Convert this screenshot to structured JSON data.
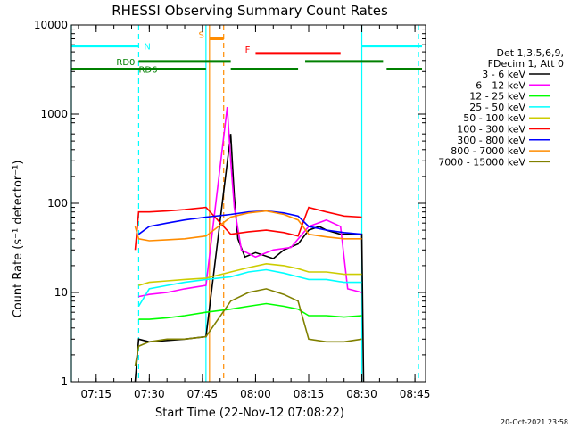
{
  "chart_data": {
    "type": "line",
    "title": "RHESSI Observing Summary Count Rates",
    "xlabel": "Start Time (22-Nov-12 07:08:22)",
    "ylabel": "Count Rate (s⁻¹ detector⁻¹)",
    "yscale": "log",
    "ylim": [
      1,
      10000
    ],
    "xlim": [
      "07:08",
      "08:48"
    ],
    "x_ticks": [
      "07:15",
      "07:30",
      "07:45",
      "08:00",
      "08:15",
      "08:30",
      "08:45"
    ],
    "y_ticks": [
      "1",
      "10",
      "100",
      "1000",
      "10000"
    ],
    "footer_date": "20-Oct-2021 23:58",
    "legend": {
      "header": [
        "Det 1,3,5,6,9,",
        "FDecim 1, Att 0"
      ],
      "entries": [
        {
          "label": "3 - 6 keV",
          "color": "#000000"
        },
        {
          "label": "6 - 12 keV",
          "color": "#ff00ff"
        },
        {
          "label": "12 - 25 keV",
          "color": "#00ff00"
        },
        {
          "label": "25 - 50 keV",
          "color": "#00ffff"
        },
        {
          "label": "50 - 100 keV",
          "color": "#cccc00"
        },
        {
          "label": "100 - 300 keV",
          "color": "#ff0000"
        },
        {
          "label": "300 - 800 keV",
          "color": "#0000ff"
        },
        {
          "label": "800 - 7000 keV",
          "color": "#ff8c00"
        },
        {
          "label": "7000 - 15000 keV",
          "color": "#808000"
        }
      ]
    },
    "flags": [
      {
        "label": "N",
        "color": "#00ffff",
        "level": 5800,
        "segments": [
          [
            "07:08",
            "07:27"
          ],
          [
            "08:30",
            "08:47"
          ]
        ]
      },
      {
        "label": "S",
        "color": "#ff8c00",
        "level": 7000,
        "segments": [
          [
            "07:47",
            "07:51"
          ]
        ]
      },
      {
        "label": "F",
        "color": "#ff0000",
        "level": 4800,
        "segments": [
          [
            "08:00",
            "08:24"
          ]
        ]
      },
      {
        "label": "RD0",
        "color": "#008000",
        "level": 3900,
        "segments": [
          [
            "07:27",
            "07:53"
          ],
          [
            "08:14",
            "08:36"
          ]
        ]
      },
      {
        "label": "RD6",
        "color": "#008000",
        "level": 3200,
        "segments": [
          [
            "07:08",
            "07:46"
          ],
          [
            "07:53",
            "08:12"
          ],
          [
            "08:37",
            "08:47"
          ]
        ]
      }
    ],
    "vlines": [
      {
        "t": "07:08",
        "color": "#00ffff",
        "style": "solid"
      },
      {
        "t": "07:27",
        "color": "#00ffff",
        "style": "dashed"
      },
      {
        "t": "07:46",
        "color": "#00ffff",
        "style": "solid"
      },
      {
        "t": "07:47",
        "color": "#ff8c00",
        "style": "solid"
      },
      {
        "t": "07:51",
        "color": "#ff8c00",
        "style": "dashed"
      },
      {
        "t": "08:30",
        "color": "#00ffff",
        "style": "solid"
      },
      {
        "t": "08:46",
        "color": "#00ffff",
        "style": "dashed"
      }
    ],
    "series": [
      {
        "name": "3 - 6 keV",
        "color": "#000000",
        "points": [
          [
            "07:26",
            1.0
          ],
          [
            "07:27",
            3.0
          ],
          [
            "07:30",
            2.8
          ],
          [
            "07:35",
            2.9
          ],
          [
            "07:40",
            3.0
          ],
          [
            "07:46",
            3.2
          ],
          [
            "07:53",
            600
          ],
          [
            "07:54",
            120
          ],
          [
            "07:55",
            40
          ],
          [
            "07:57",
            25
          ],
          [
            "08:00",
            28
          ],
          [
            "08:05",
            24
          ],
          [
            "08:08",
            30
          ],
          [
            "08:12",
            35
          ],
          [
            "08:15",
            50
          ],
          [
            "08:18",
            55
          ],
          [
            "08:20",
            50
          ],
          [
            "08:24",
            45
          ],
          [
            "08:27",
            45
          ],
          [
            "08:30",
            45
          ],
          [
            "08:30.5",
            1.0
          ]
        ]
      },
      {
        "name": "6 - 12 keV",
        "color": "#ff00ff",
        "points": [
          [
            "07:27",
            9
          ],
          [
            "07:30",
            9.5
          ],
          [
            "07:35",
            10
          ],
          [
            "07:40",
            11
          ],
          [
            "07:46",
            12
          ],
          [
            "07:52",
            1200
          ],
          [
            "07:53",
            300
          ],
          [
            "07:54",
            90
          ],
          [
            "07:56",
            30
          ],
          [
            "08:00",
            25
          ],
          [
            "08:05",
            30
          ],
          [
            "08:10",
            32
          ],
          [
            "08:15",
            55
          ],
          [
            "08:20",
            65
          ],
          [
            "08:24",
            55
          ],
          [
            "08:26",
            11
          ],
          [
            "08:30",
            10
          ]
        ]
      },
      {
        "name": "12 - 25 keV",
        "color": "#00ff00",
        "points": [
          [
            "07:27",
            5
          ],
          [
            "07:30",
            5
          ],
          [
            "07:35",
            5.2
          ],
          [
            "07:40",
            5.5
          ],
          [
            "07:46",
            6
          ],
          [
            "07:53",
            6.5
          ],
          [
            "07:58",
            7
          ],
          [
            "08:03",
            7.5
          ],
          [
            "08:08",
            7
          ],
          [
            "08:12",
            6.5
          ],
          [
            "08:15",
            5.5
          ],
          [
            "08:20",
            5.5
          ],
          [
            "08:25",
            5.3
          ],
          [
            "08:30",
            5.5
          ]
        ]
      },
      {
        "name": "25 - 50 keV",
        "color": "#00ffff",
        "points": [
          [
            "07:27",
            7
          ],
          [
            "07:30",
            11
          ],
          [
            "07:35",
            12
          ],
          [
            "07:40",
            13
          ],
          [
            "07:46",
            14
          ],
          [
            "07:53",
            15
          ],
          [
            "07:58",
            17
          ],
          [
            "08:03",
            18
          ],
          [
            "08:08",
            16.5
          ],
          [
            "08:12",
            15
          ],
          [
            "08:15",
            14
          ],
          [
            "08:20",
            14
          ],
          [
            "08:25",
            13
          ],
          [
            "08:30",
            13
          ]
        ]
      },
      {
        "name": "50 - 100 keV",
        "color": "#cccc00",
        "points": [
          [
            "07:27",
            12
          ],
          [
            "07:30",
            13
          ],
          [
            "07:35",
            13.5
          ],
          [
            "07:40",
            14
          ],
          [
            "07:46",
            14.5
          ],
          [
            "07:53",
            17
          ],
          [
            "07:58",
            19
          ],
          [
            "08:03",
            21
          ],
          [
            "08:08",
            20
          ],
          [
            "08:12",
            18.5
          ],
          [
            "08:15",
            17
          ],
          [
            "08:20",
            17
          ],
          [
            "08:25",
            16
          ],
          [
            "08:30",
            16
          ]
        ]
      },
      {
        "name": "100 - 300 keV",
        "color": "#ff0000",
        "points": [
          [
            "07:26",
            30
          ],
          [
            "07:27",
            80
          ],
          [
            "07:30",
            80
          ],
          [
            "07:35",
            82
          ],
          [
            "07:40",
            85
          ],
          [
            "07:46",
            90
          ],
          [
            "07:53",
            45
          ],
          [
            "07:58",
            48
          ],
          [
            "08:03",
            50
          ],
          [
            "08:08",
            47
          ],
          [
            "08:12",
            43
          ],
          [
            "08:15",
            90
          ],
          [
            "08:20",
            80
          ],
          [
            "08:25",
            72
          ],
          [
            "08:30",
            70
          ]
        ]
      },
      {
        "name": "300 - 800 keV",
        "color": "#0000ff",
        "points": [
          [
            "07:27",
            45
          ],
          [
            "07:30",
            55
          ],
          [
            "07:35",
            60
          ],
          [
            "07:40",
            65
          ],
          [
            "07:46",
            70
          ],
          [
            "07:53",
            75
          ],
          [
            "07:58",
            80
          ],
          [
            "08:03",
            82
          ],
          [
            "08:08",
            78
          ],
          [
            "08:12",
            72
          ],
          [
            "08:15",
            55
          ],
          [
            "08:20",
            50
          ],
          [
            "08:25",
            47
          ],
          [
            "08:30",
            45
          ]
        ]
      },
      {
        "name": "800 - 7000 keV",
        "color": "#ff8c00",
        "points": [
          [
            "07:26",
            55
          ],
          [
            "07:27",
            40
          ],
          [
            "07:30",
            38
          ],
          [
            "07:35",
            39
          ],
          [
            "07:40",
            40
          ],
          [
            "07:46",
            43
          ],
          [
            "07:53",
            70
          ],
          [
            "07:58",
            78
          ],
          [
            "08:03",
            82
          ],
          [
            "08:08",
            75
          ],
          [
            "08:12",
            65
          ],
          [
            "08:15",
            45
          ],
          [
            "08:20",
            42
          ],
          [
            "08:25",
            40
          ],
          [
            "08:30",
            40
          ]
        ]
      },
      {
        "name": "7000 - 15000 keV",
        "color": "#808000",
        "points": [
          [
            "07:26",
            1.5
          ],
          [
            "07:27",
            2.5
          ],
          [
            "07:30",
            2.8
          ],
          [
            "07:35",
            3.0
          ],
          [
            "07:40",
            3.0
          ],
          [
            "07:46",
            3.2
          ],
          [
            "07:53",
            8
          ],
          [
            "07:58",
            10
          ],
          [
            "08:03",
            11
          ],
          [
            "08:08",
            9.5
          ],
          [
            "08:12",
            8
          ],
          [
            "08:15",
            3
          ],
          [
            "08:20",
            2.8
          ],
          [
            "08:25",
            2.8
          ],
          [
            "08:30",
            3
          ]
        ]
      }
    ]
  }
}
